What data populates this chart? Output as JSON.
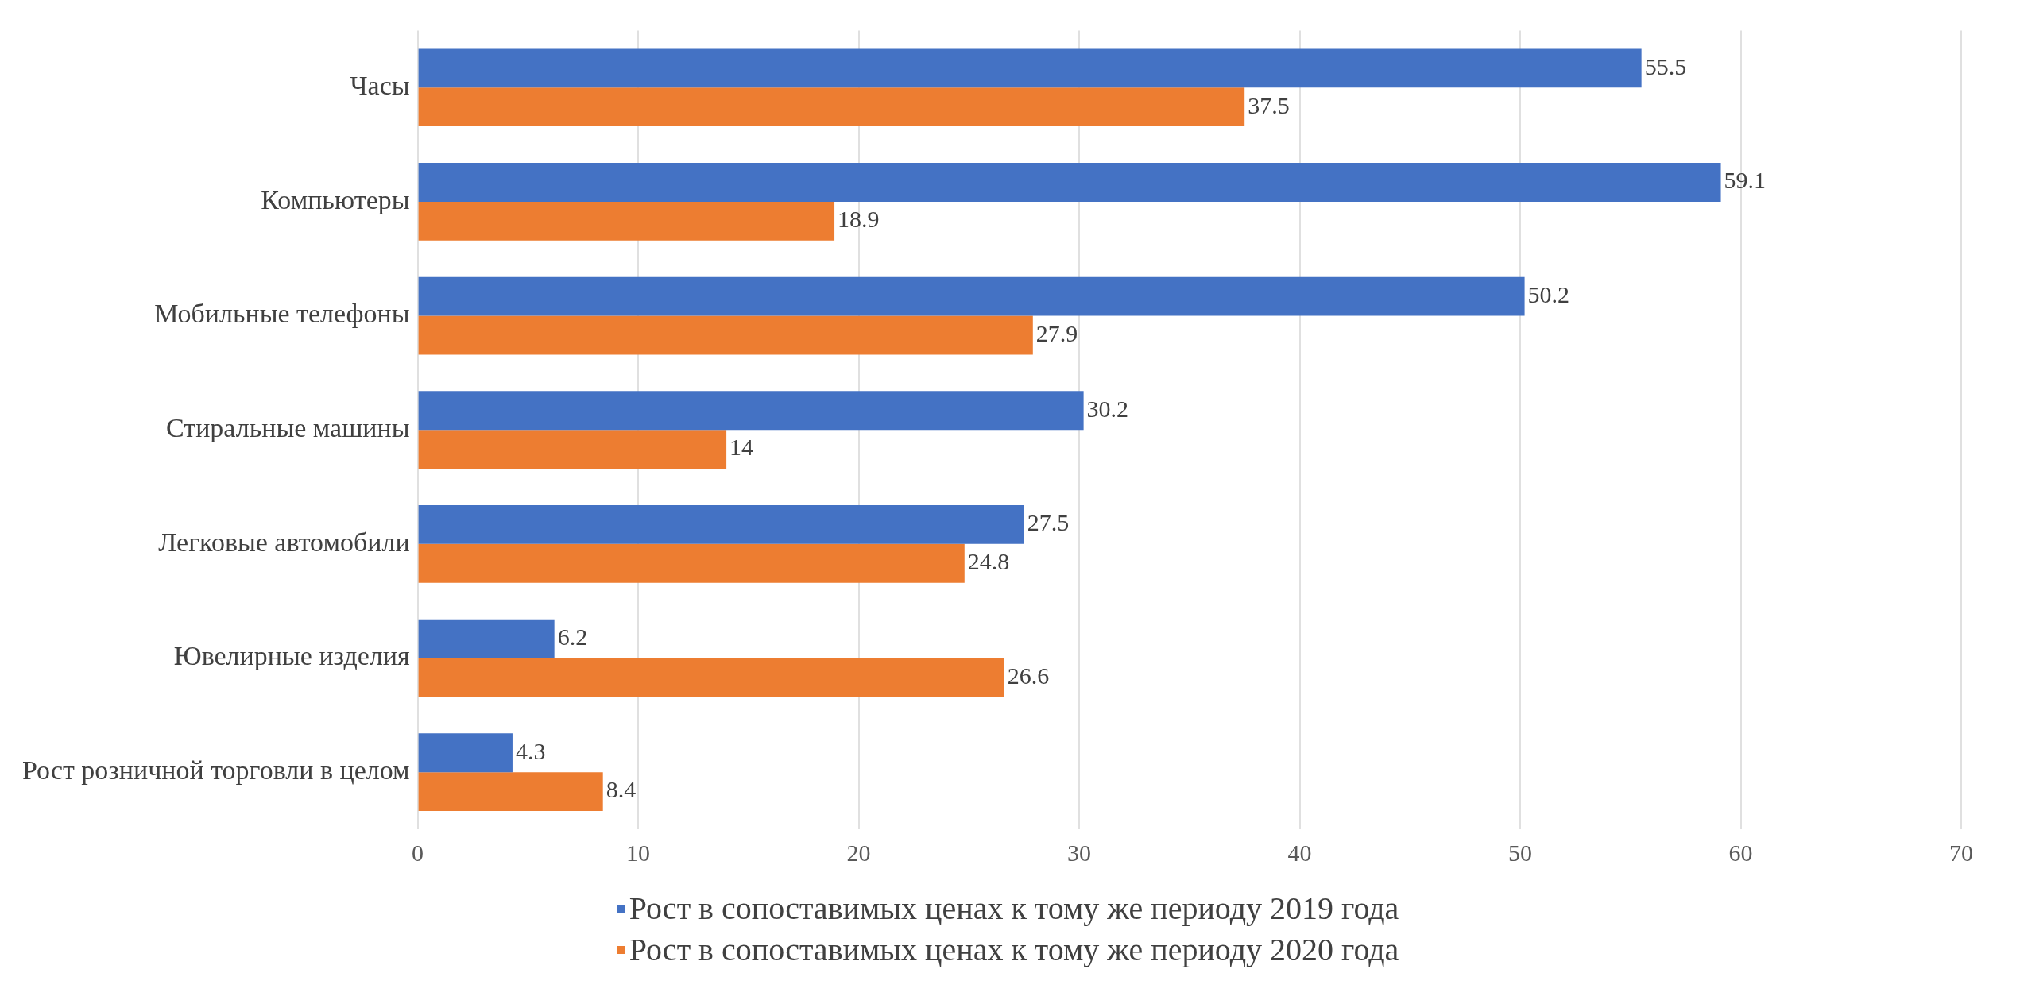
{
  "chart_data": {
    "type": "bar",
    "orientation": "horizontal",
    "categories": [
      "Часы",
      "Компьютеры",
      "Мобильные телефоны",
      "Стиральные машины",
      "Легковые автомобили",
      "Ювелирные изделия",
      "Рост розничной торговли в целом"
    ],
    "series": [
      {
        "name": "Рост в сопоставимых ценах к тому же периоду 2019 года",
        "color": "#4472c4",
        "values": [
          55.5,
          59.1,
          50.2,
          30.2,
          27.5,
          6.2,
          4.3
        ]
      },
      {
        "name": "Рост в сопоставимых ценах к тому же периоду 2020 года",
        "color": "#ed7d31",
        "values": [
          37.5,
          18.9,
          27.9,
          14,
          24.8,
          26.6,
          8.4
        ]
      }
    ],
    "xlim": [
      0,
      70
    ],
    "xticks": [
      0,
      10,
      20,
      30,
      40,
      50,
      60,
      70
    ],
    "grid": "x",
    "legend": "bottom",
    "data_labels": true
  }
}
